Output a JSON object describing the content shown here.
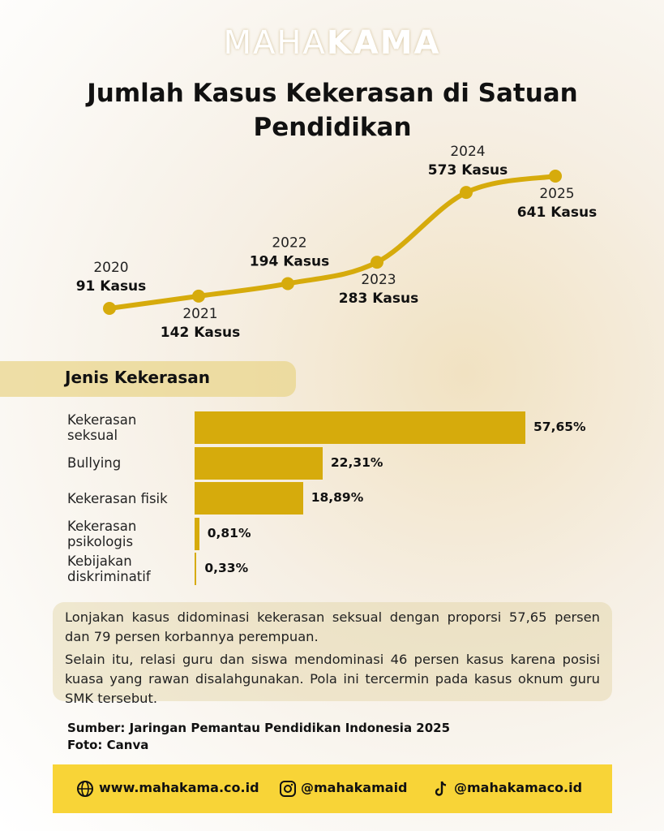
{
  "header": {
    "brand_light": "MAHA",
    "brand_bold": "KAMA"
  },
  "chart_data": [
    {
      "type": "line",
      "title": "Jumlah Kasus Kekerasan di Satuan Pendidikan",
      "x": [
        "2020",
        "2021",
        "2022",
        "2023",
        "2024",
        "2025"
      ],
      "values": [
        91,
        142,
        194,
        283,
        573,
        641
      ],
      "value_labels": [
        "91 Kasus",
        "142 Kasus",
        "194 Kasus",
        "283 Kasus",
        "573 Kasus",
        "641 Kasus"
      ],
      "color": "#d6ab0c"
    },
    {
      "type": "bar",
      "title": "Jenis Kekerasan",
      "categories": [
        "Kekerasan seksual",
        "Bullying",
        "Kekerasan fisik",
        "Kekerasan psikologis",
        "Kebijakan diskriminatif"
      ],
      "values": [
        57.65,
        22.31,
        18.89,
        0.81,
        0.33
      ],
      "value_labels": [
        "57,65%",
        "22,31%",
        "18,89%",
        "0,81%",
        "0,33%"
      ],
      "color": "#d6ab0c"
    }
  ],
  "summary": {
    "paragraphs": [
      "Lonjakan kasus didominasi kekerasan seksual dengan proporsi 57,65 persen dan 79 persen korbannya perempuan.",
      "Selain itu, relasi guru dan siswa mendominasi 46 persen kasus karena posisi kuasa yang rawan disalahgunakan. Pola ini tercermin pada kasus oknum guru SMK tersebut."
    ]
  },
  "source": "Sumber: Jaringan Pemantau Pendidikan Indonesia 2025",
  "photo": "Foto: Canva",
  "footer": {
    "website": "www.mahakama.co.id",
    "instagram": "@mahakamaid",
    "tiktok": "@mahakamaco.id"
  }
}
